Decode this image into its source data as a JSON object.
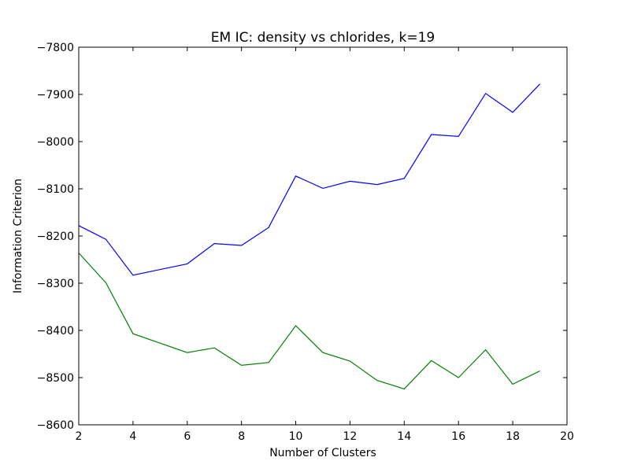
{
  "chart_data": {
    "type": "line",
    "title": "EM IC: density vs chlorides, k=19",
    "xlabel": "Number of Clusters",
    "ylabel": "Information Criterion",
    "xlim": [
      2,
      20
    ],
    "ylim": [
      -8600,
      -7800
    ],
    "xticks": [
      2,
      4,
      6,
      8,
      10,
      12,
      14,
      16,
      18,
      20
    ],
    "yticks": [
      -8600,
      -8500,
      -8400,
      -8300,
      -8200,
      -8100,
      -8000,
      -7900,
      -7800
    ],
    "xtick_labels": [
      "2",
      "4",
      "6",
      "8",
      "10",
      "12",
      "14",
      "16",
      "18",
      "20"
    ],
    "ytick_labels": [
      "−8600",
      "−8500",
      "−8400",
      "−8300",
      "−8200",
      "−8100",
      "−8000",
      "−7900",
      "−7800"
    ],
    "grid": false,
    "legend": "none",
    "x": [
      2,
      3,
      4,
      5,
      6,
      7,
      8,
      9,
      10,
      11,
      12,
      13,
      14,
      15,
      16,
      17,
      18,
      19
    ],
    "series": [
      {
        "color": "#0000ff",
        "values": [
          -8178,
          -8207,
          -8283,
          -8271,
          -8259,
          -8216,
          -8220,
          -8182,
          -8073,
          -8099,
          -8084,
          -8091,
          -8078,
          -7985,
          -7989,
          -7898,
          -7938,
          -7878
        ]
      },
      {
        "color": "#008000",
        "values": [
          -8236,
          -8299,
          -8407,
          -8427,
          -8447,
          -8437,
          -8474,
          -8468,
          -8390,
          -8447,
          -8465,
          -8506,
          -8524,
          -8464,
          -8500,
          -8441,
          -8514,
          -8486
        ]
      }
    ]
  }
}
